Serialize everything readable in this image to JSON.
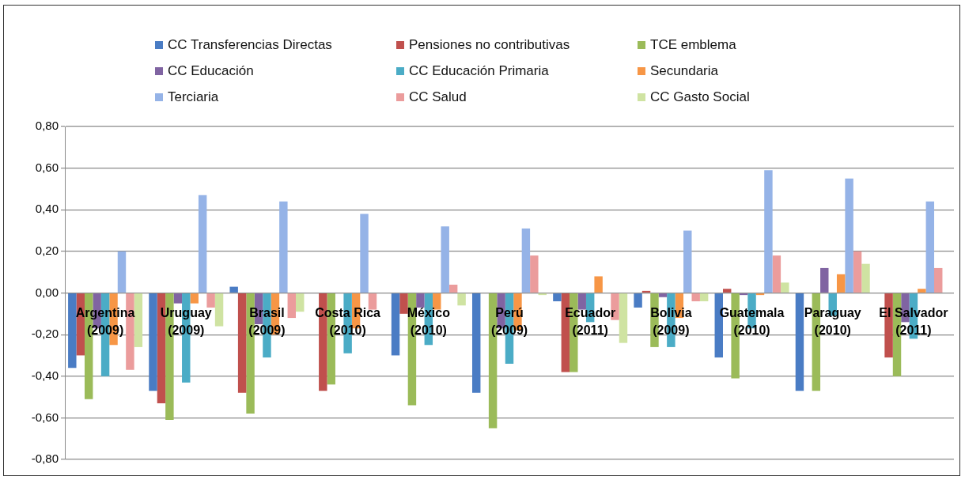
{
  "chart_data": {
    "type": "bar",
    "categories": [
      "Argentina (2009)",
      "Uruguay (2009)",
      "Brasil (2009)",
      "Costa Rica (2010)",
      "México (2010)",
      "Perú (2009)",
      "Ecuador (2011)",
      "Bolivia (2009)",
      "Guatemala (2010)",
      "Paraguay (2010)",
      "El Salvador (2011)"
    ],
    "series": [
      {
        "name": "CC Transferencias Directas",
        "color": "#4a7cc4",
        "values": [
          -0.36,
          -0.47,
          0.03,
          null,
          -0.3,
          -0.48,
          -0.04,
          -0.07,
          -0.31,
          -0.47,
          null
        ]
      },
      {
        "name": "Pensiones no contributivas",
        "color": "#c0504d",
        "values": [
          -0.3,
          -0.53,
          -0.48,
          -0.47,
          -0.1,
          null,
          -0.38,
          0.01,
          0.02,
          null,
          -0.31
        ]
      },
      {
        "name": "TCE emblema",
        "color": "#9bbb59",
        "values": [
          -0.51,
          -0.61,
          -0.58,
          -0.44,
          -0.54,
          -0.65,
          -0.38,
          -0.26,
          -0.41,
          -0.47,
          -0.4
        ]
      },
      {
        "name": "CC Educación",
        "color": "#8064a2",
        "values": [
          -0.17,
          -0.05,
          -0.15,
          null,
          -0.07,
          -0.17,
          -0.08,
          -0.02,
          -0.01,
          0.12,
          -0.14
        ]
      },
      {
        "name": "CC Educación Primaria",
        "color": "#4bacc6",
        "values": [
          -0.4,
          -0.43,
          -0.31,
          -0.29,
          -0.25,
          -0.34,
          -0.14,
          -0.26,
          -0.17,
          -0.11,
          -0.22
        ]
      },
      {
        "name": "Secundaria",
        "color": "#f79646",
        "values": [
          -0.25,
          -0.05,
          -0.2,
          -0.17,
          -0.08,
          -0.18,
          0.08,
          -0.12,
          -0.01,
          0.09,
          0.02
        ]
      },
      {
        "name": "Terciaria",
        "color": "#95b3e7",
        "values": [
          0.2,
          0.47,
          0.44,
          0.38,
          0.32,
          0.31,
          null,
          0.3,
          0.59,
          0.55,
          0.44
        ]
      },
      {
        "name": "CC Salud",
        "color": "#eb9c9c",
        "values": [
          -0.37,
          -0.07,
          -0.12,
          -0.08,
          0.04,
          0.18,
          -0.13,
          -0.04,
          0.18,
          0.2,
          0.12
        ]
      },
      {
        "name": "CC Gasto Social",
        "color": "#cfe3a2",
        "values": [
          -0.26,
          -0.16,
          -0.09,
          null,
          -0.06,
          -0.01,
          -0.24,
          -0.04,
          0.05,
          0.14,
          null
        ]
      }
    ],
    "ylim": [
      -0.8,
      0.8
    ],
    "yticks": [
      {
        "value": -0.8,
        "label": "-0,80"
      },
      {
        "value": -0.6,
        "label": "-0,60"
      },
      {
        "value": -0.4,
        "label": "-0,40"
      },
      {
        "value": -0.2,
        "label": "-0,20"
      },
      {
        "value": 0,
        "label": "0,00"
      },
      {
        "value": 0.2,
        "label": "0,20"
      },
      {
        "value": 0.4,
        "label": "0,40"
      },
      {
        "value": 0.6,
        "label": "0,60"
      },
      {
        "value": 0.8,
        "label": "0,80"
      }
    ],
    "grid": "y",
    "legend": "top"
  }
}
